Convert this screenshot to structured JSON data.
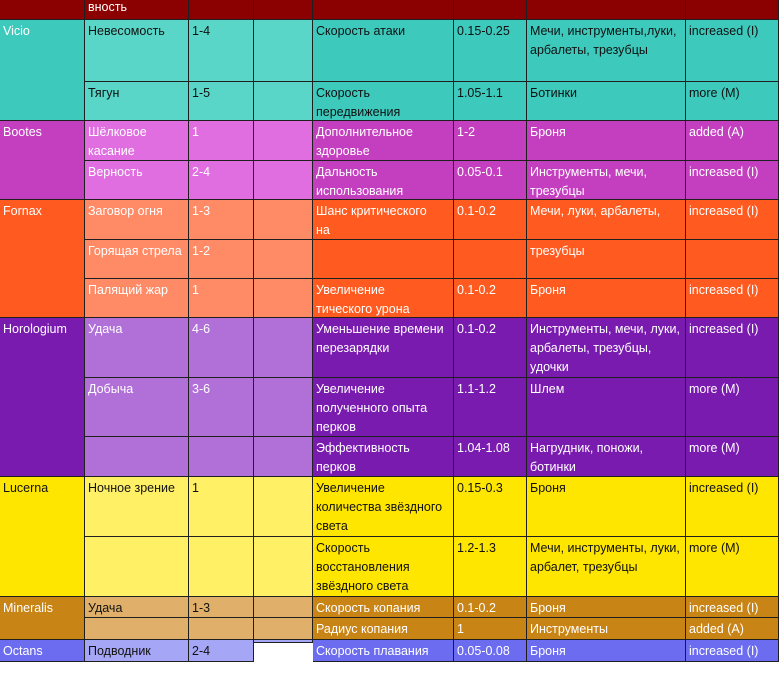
{
  "colors": {
    "header": "#8b0000",
    "vicio_group": "#3dcabd",
    "vicio_light": "#5ad6c8",
    "bootes_group": "#c43fc0",
    "bootes_light": "#e06ee0",
    "fornax_group": "#ff5a1f",
    "fornax_light": "#ff8a66",
    "horologium_group": "#7a1bb0",
    "horologium_light": "#b170d8",
    "lucerna_group": "#ffe600",
    "lucerna_light": "#fff066",
    "mineralis_group": "#c98416",
    "mineralis_light": "#e0b06a",
    "octans_group": "#6c6cf0",
    "octans_light": "#a6a6f6"
  },
  "header_row": [
    "вность",
    "",
    "",
    "",
    "",
    "",
    ""
  ],
  "rows": [
    [
      "Vicio",
      "Невесомость",
      "1-4",
      "",
      "Скорость атаки",
      "0.15-0.25",
      "Мечи, инструменты,луки, арбалеты, трезубцы",
      "increased (I)"
    ],
    [
      "",
      "Тягун",
      "1-5",
      "",
      "Скорость передвижения",
      "1.05-1.1",
      "Ботинки",
      "more (M)"
    ],
    [
      "Bootes",
      "Шёлковое касание",
      "1",
      "",
      "Дополнительное здоровье",
      "1-2",
      "Броня",
      "added (A)"
    ],
    [
      "",
      "Верность",
      "2-4",
      "",
      "Дальность использования",
      "0.05-0.1",
      "Инструменты, мечи, трезубцы",
      "increased (I)"
    ],
    [
      "Fornax",
      "Заговор огня",
      "1-3",
      "",
      "Шанс критического\nна",
      "0.1-0.2",
      "Мечи, луки, арбалеты,",
      "increased (I)"
    ],
    [
      "",
      "Горящая стрела",
      "1-2",
      "",
      "",
      "",
      "трезубцы",
      ""
    ],
    [
      "",
      "Палящий жар",
      "1",
      "",
      "Увеличение\nтического урона",
      "0.1-0.2",
      "Броня",
      "increased (I)"
    ],
    [
      "Horologium",
      "Удача",
      "4-6",
      "",
      "Уменьшение времени перезарядки",
      "0.1-0.2",
      "Инструменты, мечи, луки, арбалеты, трезубцы, удочки",
      "increased (I)"
    ],
    [
      "",
      "Добыча",
      "3-6",
      "",
      "Увеличение полученного опыта перков",
      "1.1-1.2",
      "Шлем",
      "more (M)"
    ],
    [
      "",
      "",
      "",
      "",
      "Эффективность перков",
      "1.04-1.08",
      "Нагрудник, поножи, ботинки",
      "more (M)"
    ],
    [
      "Lucerna",
      "Ночное зрение",
      "1",
      "",
      "Увеличение количества звёздного света",
      "0.15-0.3",
      "Броня",
      "increased (I)"
    ],
    [
      "",
      "",
      "",
      "",
      "Скорость восстановления звёздного света",
      "1.2-1.3",
      "Мечи, инструменты, луки, арбалет, трезубцы",
      "more (M)"
    ],
    [
      "Mineralis",
      "Удача",
      "1-3",
      "",
      "Скорость копания",
      "0.1-0.2",
      "Броня",
      "increased (I)"
    ],
    [
      "",
      "",
      "",
      "",
      "Радиус копания",
      "1",
      "Инструменты",
      "added (A)"
    ],
    [
      "Octans",
      "Подводник",
      "2-4",
      "",
      "Скорость плавания",
      "0.05-0.08",
      "Броня",
      "increased (I)"
    ]
  ]
}
